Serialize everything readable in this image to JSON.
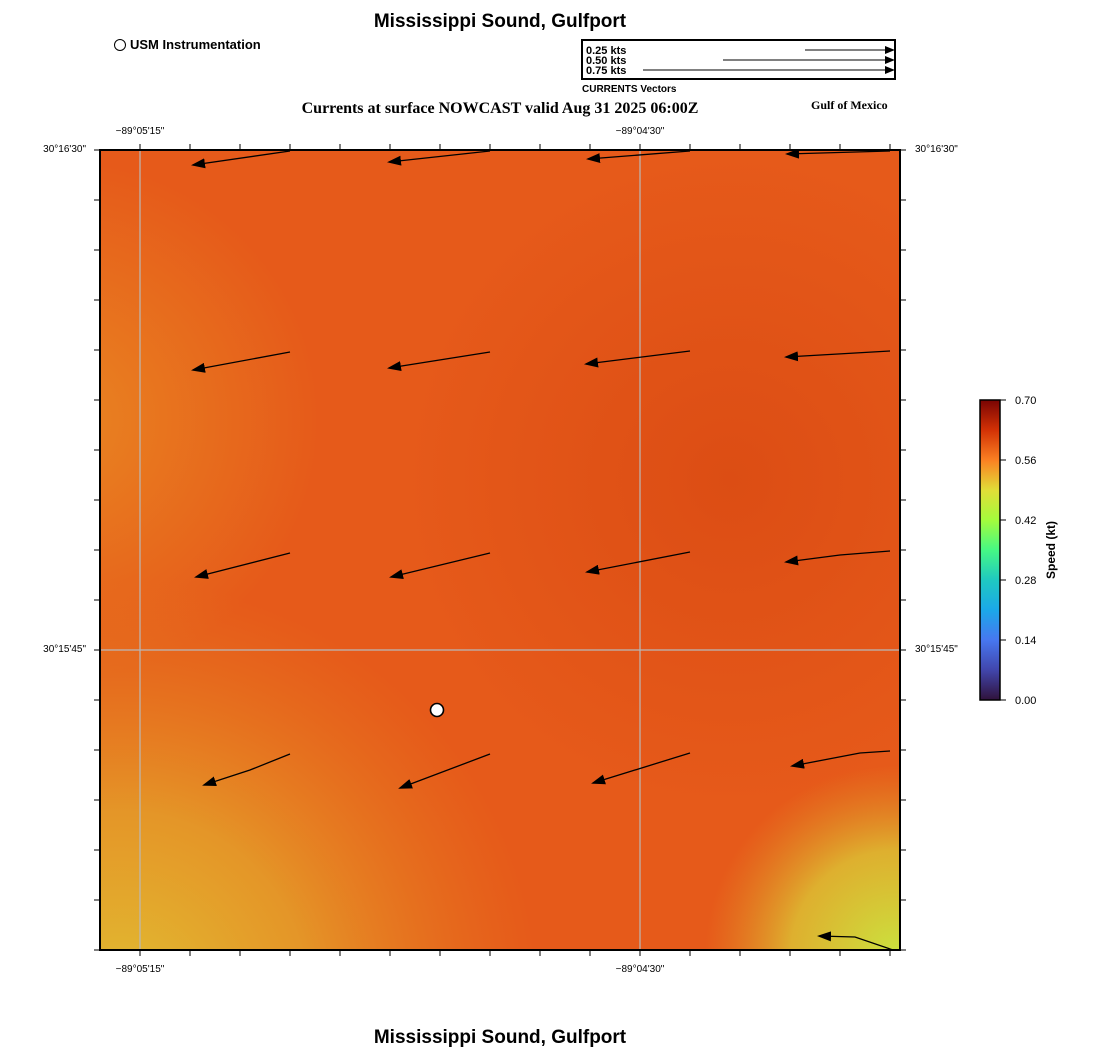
{
  "header": {
    "title": "Mississippi Sound, Gulfport",
    "subtitle": "Currents at surface NOWCAST valid Aug 31 2025 06:00Z",
    "region": "Gulf of Mexico"
  },
  "legend": {
    "instrumentation_label": "USM Instrumentation"
  },
  "vector_scale": {
    "labels": [
      "0.25 kts",
      "0.50 kts",
      "0.75 kts"
    ],
    "values": [
      0.25,
      0.5,
      0.75
    ],
    "caption": "CURRENTS Vectors"
  },
  "axes": {
    "top_longitude_labels": [
      "−89°05'15\"",
      "−89°04'30\""
    ],
    "bottom_longitude_labels": [
      "−89°05'15\"",
      "−89°04'30\""
    ],
    "left_latitude_labels": [
      "30°16'30\"",
      "30°15'45\""
    ],
    "right_latitude_labels": [
      "30°16'30\"",
      "30°15'45\""
    ]
  },
  "colorbar": {
    "title": "Speed (kt)",
    "ticks": [
      "0.70",
      "0.56",
      "0.42",
      "0.28",
      "0.14",
      "0.00"
    ]
  },
  "footer": {
    "title": "Mississippi Sound, Gulfport"
  },
  "colors": {
    "speed_low": "#30123b",
    "speed_high": "#7a0403",
    "field_main": "#e8561a",
    "field_dark": "#dd4e14",
    "field_light": "#e0b830"
  }
}
